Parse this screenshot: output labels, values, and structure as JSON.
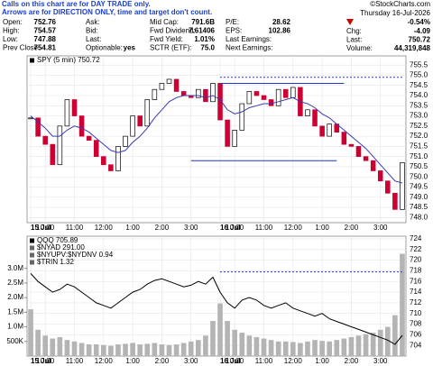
{
  "note": [
    "Calls on this chart are for DAY TRADE only.",
    "Arrows are for DIRECTION ONLY, time and target don't count."
  ],
  "header": {
    "cols": [
      [
        [
          "Open:",
          "752.76"
        ],
        [
          "High:",
          "754.57"
        ],
        [
          "Low:",
          "747.88"
        ],
        [
          "Prev Close:",
          "754.81"
        ]
      ],
      [
        [
          "Ask:"
        ],
        [
          "Bid:"
        ],
        [
          "Last:"
        ],
        [
          "Optionable:",
          "yes"
        ]
      ],
      [
        [
          "Mid Cap:",
          "791.6B"
        ],
        [
          "Fwd Dividend:",
          "7.61406"
        ],
        [
          "Fwd Yield:",
          "1.01%"
        ],
        [
          "SCTR (ETF):",
          "75.0"
        ]
      ],
      [
        [
          "P/E:",
          "28.62"
        ],
        [
          "EPS:",
          "102.86"
        ],
        [
          "Last Earnings:"
        ],
        [
          "Next Earnings:"
        ]
      ]
    ],
    "copyright": "©StockCharts.com",
    "date": "Thursday  16-Jul-2026",
    "pct": "-0.54%",
    "right": [
      [
        "Chg:",
        "-4.09"
      ],
      [
        "Last:",
        "750.72"
      ],
      [
        "Volume:",
        "44,319,848"
      ]
    ]
  },
  "chart_data": [
    {
      "type": "candlestick",
      "x": [
        0,
        1,
        2,
        3,
        4,
        5,
        6,
        7,
        8,
        9,
        10,
        11,
        12,
        13,
        14,
        15,
        16,
        17,
        18,
        19,
        20,
        21,
        22,
        23,
        24,
        25,
        26,
        27,
        28,
        29,
        30,
        31,
        32,
        33,
        34,
        35,
        36,
        37,
        38,
        39,
        40,
        41,
        42,
        43,
        44,
        45,
        46,
        47,
        48,
        49,
        50,
        51
      ],
      "series": [
        {
          "name": "SPY (5 min) 750.72",
          "kind": "candle",
          "color": "#cc0033",
          "values": [
            752.9,
            752.0,
            751.6,
            750.6,
            752.5,
            753.8,
            753.0,
            752.0,
            751.8,
            751.0,
            750.6,
            750.3,
            751.5,
            752.0,
            753.0,
            752.5,
            753.8,
            754.3,
            754.6,
            754.8,
            754.2,
            754.0,
            753.9,
            754.3,
            753.7,
            754.6,
            752.8,
            751.5,
            752.3,
            753.6,
            754.2,
            754.0,
            753.8,
            753.5,
            754.3,
            753.9,
            754.4,
            753.0,
            753.3,
            752.5,
            752.0,
            752.6,
            752.2,
            751.6,
            751.5,
            751.0,
            750.8,
            750.3,
            749.8,
            749.2,
            748.4,
            750.7
          ]
        },
        {
          "kind": "line",
          "color": "#3a3ab0",
          "values": [
            753.0,
            752.7,
            752.4,
            752.0,
            752.0,
            752.3,
            752.5,
            752.4,
            752.2,
            751.9,
            751.6,
            751.3,
            751.2,
            751.3,
            751.7,
            752.0,
            752.4,
            752.9,
            753.3,
            753.7,
            753.9,
            754.0,
            754.0,
            754.0,
            753.9,
            754.0,
            753.8,
            753.3,
            753.1,
            753.2,
            753.4,
            753.5,
            753.6,
            753.6,
            753.7,
            753.8,
            753.9,
            753.7,
            753.6,
            753.4,
            753.1,
            752.9,
            752.6,
            752.3,
            752.0,
            751.7,
            751.4,
            751.0,
            750.6,
            750.2,
            749.8,
            749.7
          ]
        }
      ],
      "levels": [
        {
          "value": 754.9,
          "x": [
            26,
            51
          ],
          "style": "dashed",
          "color": "#2233cc"
        },
        {
          "value": 754.6,
          "x": [
            26,
            43
          ],
          "style": "solid",
          "color": "#2233cc"
        },
        {
          "value": 750.8,
          "x": [
            22,
            42
          ],
          "style": "solid",
          "color": "#2233cc"
        }
      ],
      "xlim": [
        -0.5,
        51.5
      ],
      "xticks": [
        {
          "value": 0,
          "label": "15 Jul"
        },
        {
          "value": 2,
          "label": "10:00"
        },
        {
          "value": 6,
          "label": "11:00"
        },
        {
          "value": 10,
          "label": "12:00"
        },
        {
          "value": 14,
          "label": "1:00"
        },
        {
          "value": 18,
          "label": "2:00"
        },
        {
          "value": 22,
          "label": "3:00"
        },
        {
          "value": 26,
          "label": "16 Jul"
        },
        {
          "value": 28,
          "label": "10:00"
        },
        {
          "value": 32,
          "label": "11:00"
        },
        {
          "value": 36,
          "label": "12:00"
        },
        {
          "value": 40,
          "label": "1:00"
        },
        {
          "value": 44,
          "label": "2:00"
        },
        {
          "value": 48,
          "label": "3:00"
        }
      ],
      "ylim": [
        747.75,
        755.95
      ],
      "yticks": [
        {
          "value": 748,
          "label": "748.0"
        },
        748.5,
        {
          "value": 749,
          "label": "749.0"
        },
        749.5,
        {
          "value": 750,
          "label": "750.0"
        },
        750.5,
        {
          "value": 751,
          "label": "751.0"
        },
        751.5,
        {
          "value": 752,
          "label": "752.0"
        },
        752.5,
        {
          "value": 753,
          "label": "753.0"
        },
        753.5,
        {
          "value": 754,
          "label": "754.0"
        },
        754.5,
        {
          "value": 755,
          "label": "755.0"
        },
        755.5
      ],
      "grid": true
    },
    {
      "type": "line",
      "x": [
        0,
        1,
        2,
        3,
        4,
        5,
        6,
        7,
        8,
        9,
        10,
        11,
        12,
        13,
        14,
        15,
        16,
        17,
        18,
        19,
        20,
        21,
        22,
        23,
        24,
        25,
        26,
        27,
        28,
        29,
        30,
        31,
        32,
        33,
        34,
        35,
        36,
        37,
        38,
        39,
        40,
        41,
        42,
        43,
        44,
        45,
        46,
        47,
        48,
        49,
        50,
        51
      ],
      "series": [
        {
          "kind": "bar",
          "axis": "y2",
          "color": "#b4b4b4",
          "values": [
            1600000,
            900000,
            700000,
            600000,
            650000,
            550000,
            500000,
            450000,
            400000,
            400000,
            380000,
            350000,
            400000,
            420000,
            450000,
            400000,
            420000,
            450000,
            400000,
            380000,
            400000,
            450000,
            500000,
            550000,
            700000,
            1200000,
            1800000,
            1200000,
            900000,
            800000,
            700000,
            650000,
            600000,
            550000,
            500000,
            500000,
            480000,
            450000,
            500000,
            550000,
            520000,
            500000,
            550000,
            600000,
            650000,
            700000,
            750000,
            800000,
            900000,
            1000000,
            1400000,
            3500000
          ]
        },
        {
          "name": "QQQ 705.89",
          "kind": "line",
          "color": "#000000",
          "values": [
            717.5,
            716,
            715,
            714,
            714.5,
            715.5,
            715,
            714,
            713,
            712,
            711.5,
            711,
            712,
            713,
            714,
            714.5,
            715.5,
            716.2,
            716.5,
            716,
            715.5,
            715,
            715.3,
            716,
            715.5,
            716.8,
            714,
            712,
            711,
            712.5,
            713,
            712.5,
            711.5,
            711,
            711.5,
            712,
            711,
            710.5,
            710,
            709.5,
            710,
            709,
            708.5,
            708,
            707.5,
            707,
            706.5,
            706,
            705.5,
            705,
            704.2,
            705.89
          ]
        }
      ],
      "legend_texts": [
        "$NYAD 291.00",
        "$NYUPV:$NYDNV 0.94",
        "$TRIN 1.32"
      ],
      "levels": [
        {
          "value": 717.8,
          "x": [
            26,
            51
          ],
          "style": "dashed",
          "color": "#2233cc"
        }
      ],
      "xlim": [
        -0.5,
        51.5
      ],
      "xticks": [
        {
          "value": 0,
          "label": "15 Jul"
        },
        {
          "value": 2,
          "label": "10:00"
        },
        {
          "value": 6,
          "label": "11:00"
        },
        {
          "value": 10,
          "label": "12:00"
        },
        {
          "value": 14,
          "label": "1:00"
        },
        {
          "value": 18,
          "label": "2:00"
        },
        {
          "value": 22,
          "label": "3:00"
        },
        {
          "value": 26,
          "label": "16 Jul"
        },
        {
          "value": 28,
          "label": "10:00"
        },
        {
          "value": 32,
          "label": "11:00"
        },
        {
          "value": 36,
          "label": "12:00"
        },
        {
          "value": 40,
          "label": "1:00"
        },
        {
          "value": 44,
          "label": "2:00"
        },
        {
          "value": 48,
          "label": "3:00"
        }
      ],
      "ylim": [
        702,
        724.5
      ],
      "yticks": [
        704,
        706,
        708,
        710,
        712,
        714,
        716,
        718,
        720,
        722,
        724
      ],
      "y2lim": [
        0,
        4100000
      ],
      "y2ticks": [
        {
          "value": 500000,
          "label": "500K"
        },
        {
          "value": 1000000,
          "label": "1.0M"
        },
        {
          "value": 1500000,
          "label": "1.5M"
        },
        {
          "value": 2000000,
          "label": "2.0M"
        },
        {
          "value": 2500000,
          "label": "2.5M"
        },
        {
          "value": 3000000,
          "label": "3.0M"
        }
      ],
      "grid": true
    }
  ]
}
